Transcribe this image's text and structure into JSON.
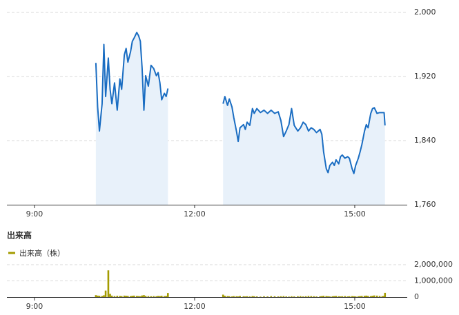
{
  "chart_data": [
    {
      "type": "line",
      "x": [
        609,
        611,
        613,
        616,
        618,
        620,
        623,
        625,
        627,
        630,
        633,
        636,
        638,
        641,
        643,
        645,
        648,
        650,
        652,
        655,
        657,
        659,
        661,
        663,
        665,
        668,
        671,
        674,
        677,
        679,
        681,
        683,
        686,
        688,
        690,
        720,
        752,
        754,
        757,
        759,
        762,
        764,
        767,
        769,
        771,
        775,
        777,
        779,
        782,
        785,
        787,
        790,
        794,
        798,
        802,
        806,
        810,
        814,
        817,
        820,
        823,
        826,
        829,
        832,
        836,
        839,
        842,
        845,
        848,
        851,
        854,
        857,
        861,
        863,
        865,
        868,
        870,
        872,
        875,
        877,
        879,
        882,
        884,
        886,
        889,
        892,
        894,
        897,
        899,
        901,
        904,
        906,
        908,
        911,
        913,
        915,
        918,
        920,
        922,
        925,
        928,
        931,
        933,
        934
      ],
      "series": [
        {
          "color": "#1a6dc2",
          "fill": "#e8f1fa",
          "values": [
            1937,
            1882,
            1852,
            1886,
            1960,
            1895,
            1943,
            1904,
            1886,
            1912,
            1878,
            1917,
            1904,
            1947,
            1955,
            1938,
            1951,
            1964,
            1968,
            1975,
            1971,
            1964,
            1930,
            1878,
            1921,
            1908,
            1934,
            1930,
            1921,
            1925,
            1912,
            1891,
            1899,
            1895,
            1905,
            null,
            1886,
            1895,
            1884,
            1892,
            1882,
            1869,
            1852,
            1839,
            1856,
            1860,
            1854,
            1863,
            1859,
            1880,
            1874,
            1880,
            1875,
            1878,
            1874,
            1878,
            1874,
            1876,
            1865,
            1845,
            1852,
            1860,
            1880,
            1859,
            1852,
            1856,
            1863,
            1860,
            1852,
            1856,
            1854,
            1850,
            1854,
            1848,
            1826,
            1805,
            1800,
            1809,
            1813,
            1809,
            1816,
            1811,
            1820,
            1822,
            1818,
            1820,
            1818,
            1805,
            1799,
            1809,
            1818,
            1826,
            1835,
            1852,
            1860,
            1856,
            1874,
            1880,
            1881,
            1874,
            1875,
            1875,
            1875,
            1859
          ]
        }
      ],
      "xlim": [
        509,
        959
      ],
      "xticks": [
        {
          "value": 540,
          "label": "9:00"
        },
        {
          "value": 720,
          "label": "12:00"
        },
        {
          "value": 900,
          "label": "15:00"
        }
      ],
      "ylim": [
        1760,
        2000
      ],
      "yticks": [
        {
          "value": 1760,
          "label": "1,760"
        },
        {
          "value": 1840,
          "label": "1,840"
        },
        {
          "value": 1920,
          "label": "1,920"
        },
        {
          "value": 2000,
          "label": "2,000"
        }
      ],
      "grid": true
    },
    {
      "type": "bar",
      "title": "出来高",
      "x": [
        609,
        611,
        613,
        616,
        618,
        620,
        623,
        625,
        627,
        630,
        633,
        636,
        638,
        641,
        643,
        645,
        648,
        650,
        652,
        655,
        657,
        659,
        661,
        663,
        665,
        668,
        671,
        674,
        677,
        679,
        681,
        683,
        686,
        688,
        690,
        720,
        752,
        754,
        757,
        759,
        762,
        764,
        767,
        769,
        771,
        775,
        777,
        779,
        782,
        785,
        787,
        790,
        794,
        798,
        802,
        806,
        810,
        814,
        817,
        820,
        823,
        826,
        829,
        832,
        836,
        839,
        842,
        845,
        848,
        851,
        854,
        857,
        861,
        863,
        865,
        868,
        870,
        872,
        875,
        877,
        879,
        882,
        884,
        886,
        889,
        892,
        894,
        897,
        899,
        901,
        904,
        906,
        908,
        911,
        913,
        915,
        918,
        920,
        922,
        925,
        928,
        931,
        933,
        934
      ],
      "series": [
        {
          "name": "出来高（株）",
          "color": "#a39b00",
          "values": [
            120000,
            90000,
            80000,
            70000,
            110000,
            400000,
            1650000,
            200000,
            90000,
            60000,
            80000,
            70000,
            60000,
            90000,
            80000,
            70000,
            60000,
            80000,
            90000,
            70000,
            60000,
            50000,
            100000,
            120000,
            70000,
            60000,
            50000,
            60000,
            50000,
            70000,
            60000,
            80000,
            60000,
            70000,
            250000,
            null,
            150000,
            80000,
            60000,
            50000,
            40000,
            60000,
            50000,
            40000,
            70000,
            50000,
            40000,
            50000,
            40000,
            60000,
            50000,
            40000,
            30000,
            50000,
            40000,
            60000,
            50000,
            40000,
            50000,
            60000,
            40000,
            30000,
            50000,
            40000,
            50000,
            60000,
            40000,
            50000,
            70000,
            60000,
            50000,
            40000,
            50000,
            60000,
            80000,
            60000,
            50000,
            40000,
            50000,
            60000,
            70000,
            50000,
            40000,
            50000,
            60000,
            40000,
            50000,
            60000,
            50000,
            40000,
            50000,
            60000,
            70000,
            80000,
            90000,
            70000,
            60000,
            80000,
            100000,
            90000,
            70000,
            60000,
            80000,
            260000
          ]
        }
      ],
      "xlim": [
        509,
        959
      ],
      "xticks": [
        {
          "value": 540,
          "label": "9:00"
        },
        {
          "value": 720,
          "label": "12:00"
        },
        {
          "value": 900,
          "label": "15:00"
        }
      ],
      "ylim": [
        0,
        2000000
      ],
      "yticks": [
        0,
        {
          "value": 1000000,
          "label": "1,000,000"
        },
        {
          "value": 2000000,
          "label": "2,000,000"
        }
      ],
      "grid": true
    }
  ]
}
